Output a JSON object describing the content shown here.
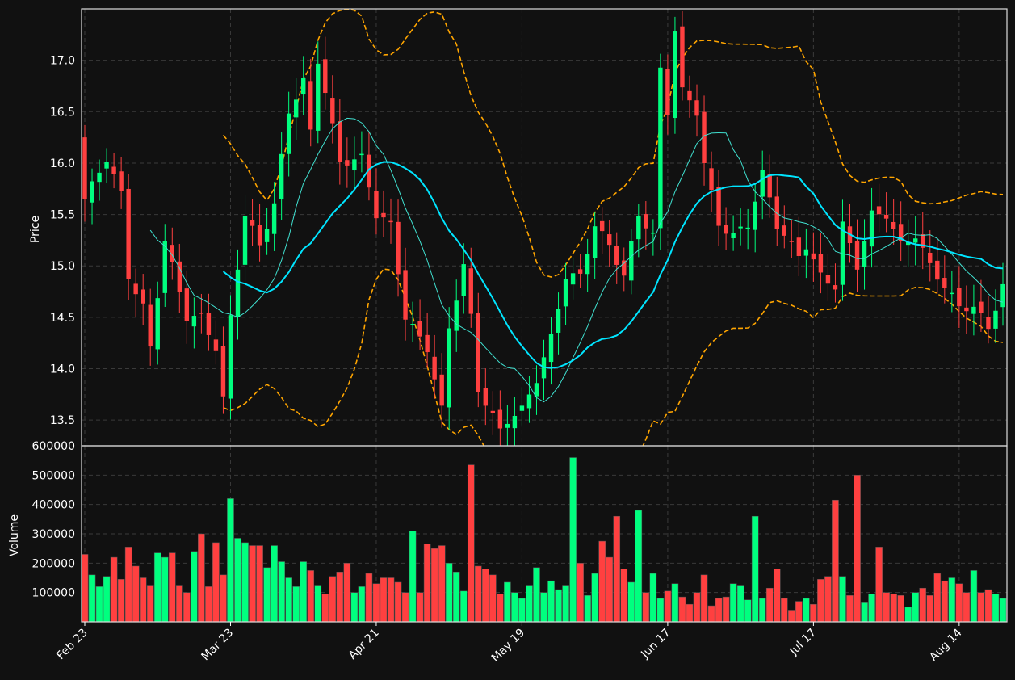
{
  "colors": {
    "background": "#111111",
    "up": "#00ff7f",
    "down": "#ff4040",
    "sma_fast": "#40e0d0",
    "sma_slow": "#00e5ff",
    "bands": "#ffa500",
    "grid": "#3a3a3a",
    "text": "#ffffff"
  },
  "chart_data": {
    "type": "candlestick",
    "price_panel": {
      "ylabel": "Price",
      "ylim": [
        13.25,
        17.5
      ],
      "yticks": [
        13.5,
        14.0,
        14.5,
        15.0,
        15.5,
        16.0,
        16.5,
        17.0
      ]
    },
    "volume_panel": {
      "ylabel": "Volume",
      "ylim": [
        0,
        600000
      ],
      "yticks": [
        100000,
        200000,
        300000,
        400000,
        500000,
        600000
      ]
    },
    "grid": true,
    "x_tick_labels": [
      {
        "index": 0,
        "label": "Feb 23"
      },
      {
        "index": 20,
        "label": "Mar 23"
      },
      {
        "index": 40,
        "label": "Apr 21"
      },
      {
        "index": 60,
        "label": "May 19"
      },
      {
        "index": 80,
        "label": "Jun 17"
      },
      {
        "index": 100,
        "label": "Jul 17"
      },
      {
        "index": 120,
        "label": "Aug 14"
      }
    ],
    "close_keypoints": [
      [
        0,
        15.65
      ],
      [
        3,
        16.05
      ],
      [
        5,
        15.7
      ],
      [
        6,
        14.9
      ],
      [
        8,
        14.6
      ],
      [
        9,
        14.2
      ],
      [
        11,
        15.25
      ],
      [
        14,
        14.5
      ],
      [
        16,
        14.5
      ],
      [
        18,
        14.2
      ],
      [
        19,
        13.7
      ],
      [
        20,
        14.5
      ],
      [
        22,
        15.5
      ],
      [
        24,
        15.2
      ],
      [
        26,
        15.6
      ],
      [
        28,
        16.5
      ],
      [
        30,
        16.8
      ],
      [
        31,
        16.3
      ],
      [
        32,
        17.0
      ],
      [
        33,
        16.7
      ],
      [
        35,
        16.0
      ],
      [
        38,
        16.05
      ],
      [
        40,
        15.5
      ],
      [
        42,
        15.4
      ],
      [
        44,
        14.5
      ],
      [
        47,
        14.2
      ],
      [
        49,
        13.6
      ],
      [
        50,
        14.4
      ],
      [
        52,
        15.0
      ],
      [
        53,
        14.5
      ],
      [
        54,
        13.8
      ],
      [
        57,
        13.4
      ],
      [
        58,
        13.5
      ],
      [
        60,
        13.6
      ],
      [
        62,
        13.9
      ],
      [
        64,
        14.3
      ],
      [
        66,
        14.9
      ],
      [
        68,
        14.9
      ],
      [
        70,
        15.4
      ],
      [
        72,
        15.2
      ],
      [
        74,
        14.9
      ],
      [
        76,
        15.5
      ],
      [
        78,
        15.3
      ],
      [
        79,
        16.9
      ],
      [
        80,
        16.5
      ],
      [
        81,
        17.3
      ],
      [
        82,
        16.7
      ],
      [
        84,
        16.5
      ],
      [
        85,
        16.0
      ],
      [
        87,
        15.4
      ],
      [
        89,
        15.3
      ],
      [
        91,
        15.4
      ],
      [
        93,
        15.9
      ],
      [
        95,
        15.4
      ],
      [
        96,
        15.3
      ],
      [
        98,
        15.1
      ],
      [
        99,
        15.2
      ],
      [
        101,
        14.9
      ],
      [
        103,
        14.8
      ],
      [
        104,
        15.4
      ],
      [
        106,
        15.0
      ],
      [
        108,
        15.5
      ],
      [
        110,
        15.5
      ],
      [
        112,
        15.2
      ],
      [
        114,
        15.3
      ],
      [
        116,
        15.0
      ],
      [
        118,
        14.8
      ],
      [
        120,
        14.6
      ],
      [
        122,
        14.6
      ],
      [
        124,
        14.4
      ],
      [
        125,
        14.6
      ],
      [
        126,
        14.8
      ]
    ],
    "volume": [
      230000,
      160000,
      120000,
      155000,
      220000,
      145000,
      255000,
      190000,
      150000,
      125000,
      235000,
      220000,
      235000,
      125000,
      100000,
      240000,
      300000,
      120000,
      270000,
      160000,
      420000,
      285000,
      270000,
      260000,
      260000,
      185000,
      260000,
      205000,
      150000,
      120000,
      205000,
      175000,
      125000,
      95000,
      155000,
      170000,
      200000,
      100000,
      120000,
      165000,
      130000,
      150000,
      150000,
      135000,
      100000,
      310000,
      100000,
      265000,
      250000,
      260000,
      200000,
      170000,
      105000,
      535000,
      190000,
      180000,
      160000,
      95000,
      135000,
      100000,
      80000,
      125000,
      185000,
      100000,
      140000,
      110000,
      125000,
      560000,
      200000,
      90000,
      165000,
      275000,
      220000,
      360000,
      180000,
      135000,
      380000,
      100000,
      165000,
      80000,
      105000,
      130000,
      85000,
      60000,
      100000,
      160000,
      55000,
      80000,
      85000,
      130000,
      125000,
      75000,
      360000,
      80000,
      115000,
      180000,
      80000,
      40000,
      70000,
      80000,
      60000,
      145000,
      155000,
      415000,
      155000,
      90000,
      500000,
      65000,
      95000,
      255000,
      100000,
      95000,
      90000,
      50000,
      100000,
      115000,
      90000,
      165000,
      140000,
      150000,
      130000,
      100000,
      175000,
      100000,
      110000,
      95000,
      80000
    ]
  }
}
